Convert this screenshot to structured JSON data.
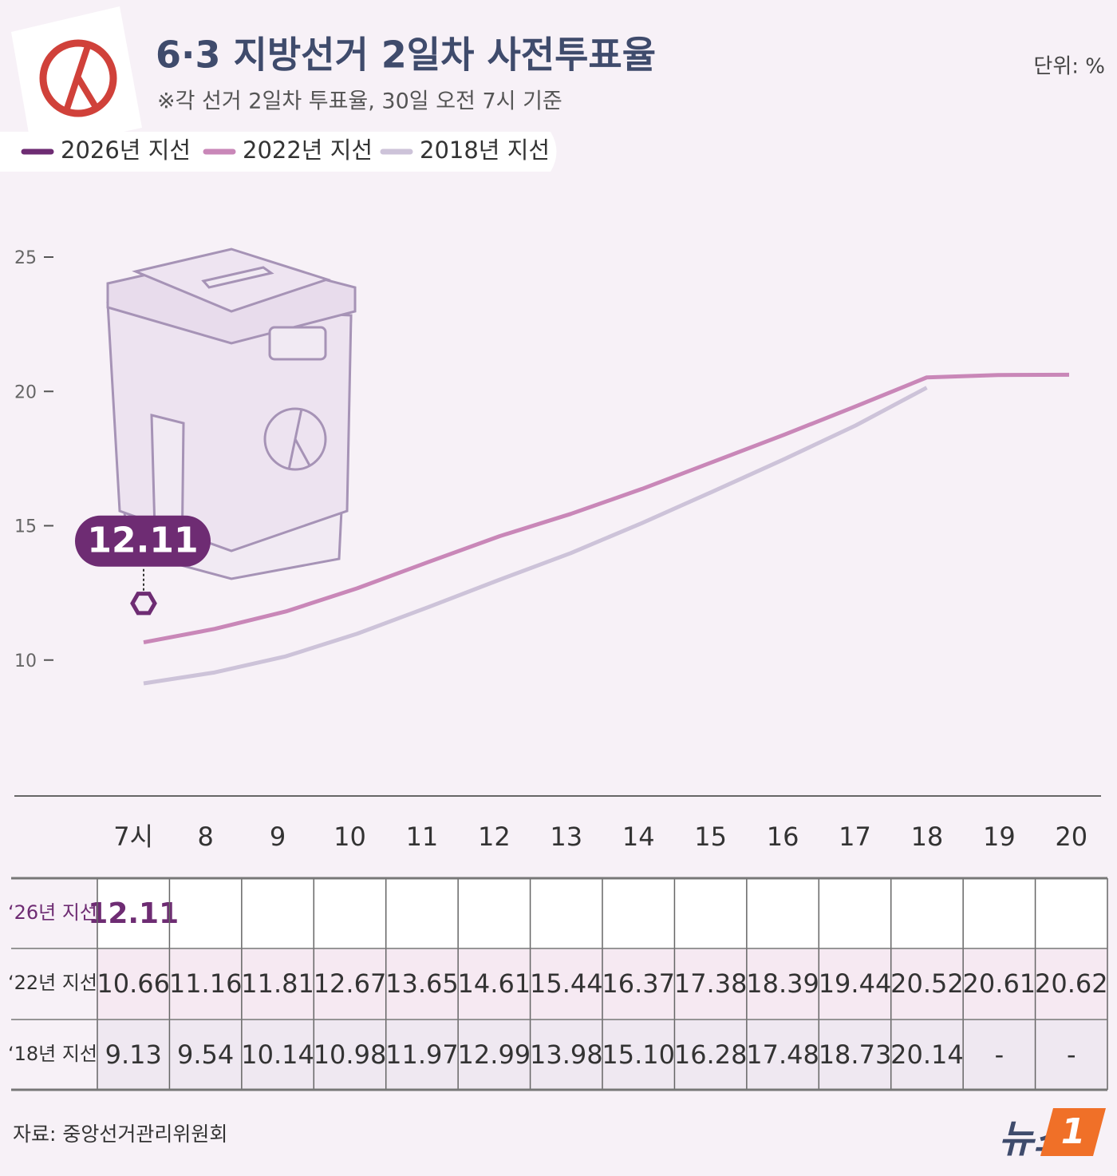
{
  "chart_data": {
    "type": "line",
    "title": "6·3 지방선거 2일차 사전투표율",
    "subtitle": "※각 선거 2일차 투표율, 30일 오전 7시 기준",
    "unit": "단위: %",
    "categories": [
      "7시",
      "8",
      "9",
      "10",
      "11",
      "12",
      "13",
      "14",
      "15",
      "16",
      "17",
      "18",
      "19",
      "20"
    ],
    "ylim": [
      5,
      25
    ],
    "yticks": [
      10,
      15,
      20,
      25
    ],
    "series": [
      {
        "name": "2026년 지선",
        "row_label": "‘26년 지선",
        "color": "#6e2c73",
        "values": [
          12.11,
          null,
          null,
          null,
          null,
          null,
          null,
          null,
          null,
          null,
          null,
          null,
          null,
          null
        ],
        "value_labels": [
          "12.11",
          null,
          null,
          null,
          null,
          null,
          null,
          null,
          null,
          null,
          null,
          null,
          null,
          null
        ]
      },
      {
        "name": "2022년 지선",
        "row_label": "‘22년 지선",
        "color": "#c987b8",
        "values": [
          10.66,
          11.16,
          11.81,
          12.67,
          13.65,
          14.61,
          15.44,
          16.37,
          17.38,
          18.39,
          19.44,
          20.52,
          20.61,
          20.62
        ],
        "value_labels": [
          "10.66",
          "11.16",
          "11.81",
          "12.67",
          "13.65",
          "14.61",
          "15.44",
          "16.37",
          "17.38",
          "18.39",
          "19.44",
          "20.52",
          "20.61",
          "20.62"
        ]
      },
      {
        "name": "2018년 지선",
        "row_label": "‘18년 지선",
        "color": "#cdc3d9",
        "values": [
          9.13,
          9.54,
          10.14,
          10.98,
          11.97,
          12.99,
          13.98,
          15.1,
          16.28,
          17.48,
          18.73,
          20.14,
          null,
          null
        ],
        "value_labels": [
          "9.13",
          "9.54",
          "10.14",
          "10.98",
          "11.97",
          "12.99",
          "13.98",
          "15.10",
          "16.28",
          "17.48",
          "18.73",
          "20.14",
          "-",
          "-"
        ]
      }
    ],
    "source": "자료: 중앙선거관리위원회",
    "logo": {
      "text": "뉴스",
      "mark": "1"
    }
  }
}
